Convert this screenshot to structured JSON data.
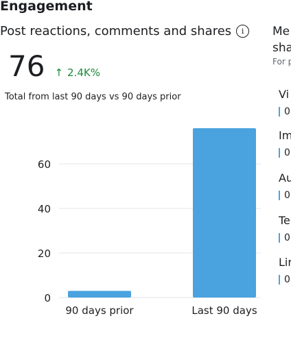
{
  "section": {
    "title": "Engagement"
  },
  "card": {
    "title": "Post reactions, comments and shares",
    "info_icon": "info-icon",
    "value": "76",
    "change": "2.4K%",
    "change_icon": "up-arrow-icon",
    "change_color": "#1a8a3a",
    "subtitle": "Total from last 90 days vs 90 days prior"
  },
  "chart_data": {
    "type": "bar",
    "categories": [
      "90 days prior",
      "Last 90 days"
    ],
    "values": [
      3,
      76
    ],
    "ylim": [
      0,
      80
    ],
    "yticks": [
      0,
      20,
      40,
      60
    ],
    "grid": true,
    "bar_color": "#4aa3df"
  },
  "right_panel": {
    "title_line1": "Me",
    "title_line2": "sha",
    "subtitle": "For p",
    "items": [
      {
        "label": "Vi",
        "value": "0"
      },
      {
        "label": "Im",
        "value": "0"
      },
      {
        "label": "Au",
        "value": "0"
      },
      {
        "label": "Te",
        "value": "0"
      },
      {
        "label": "Lir",
        "value": "0"
      }
    ]
  }
}
